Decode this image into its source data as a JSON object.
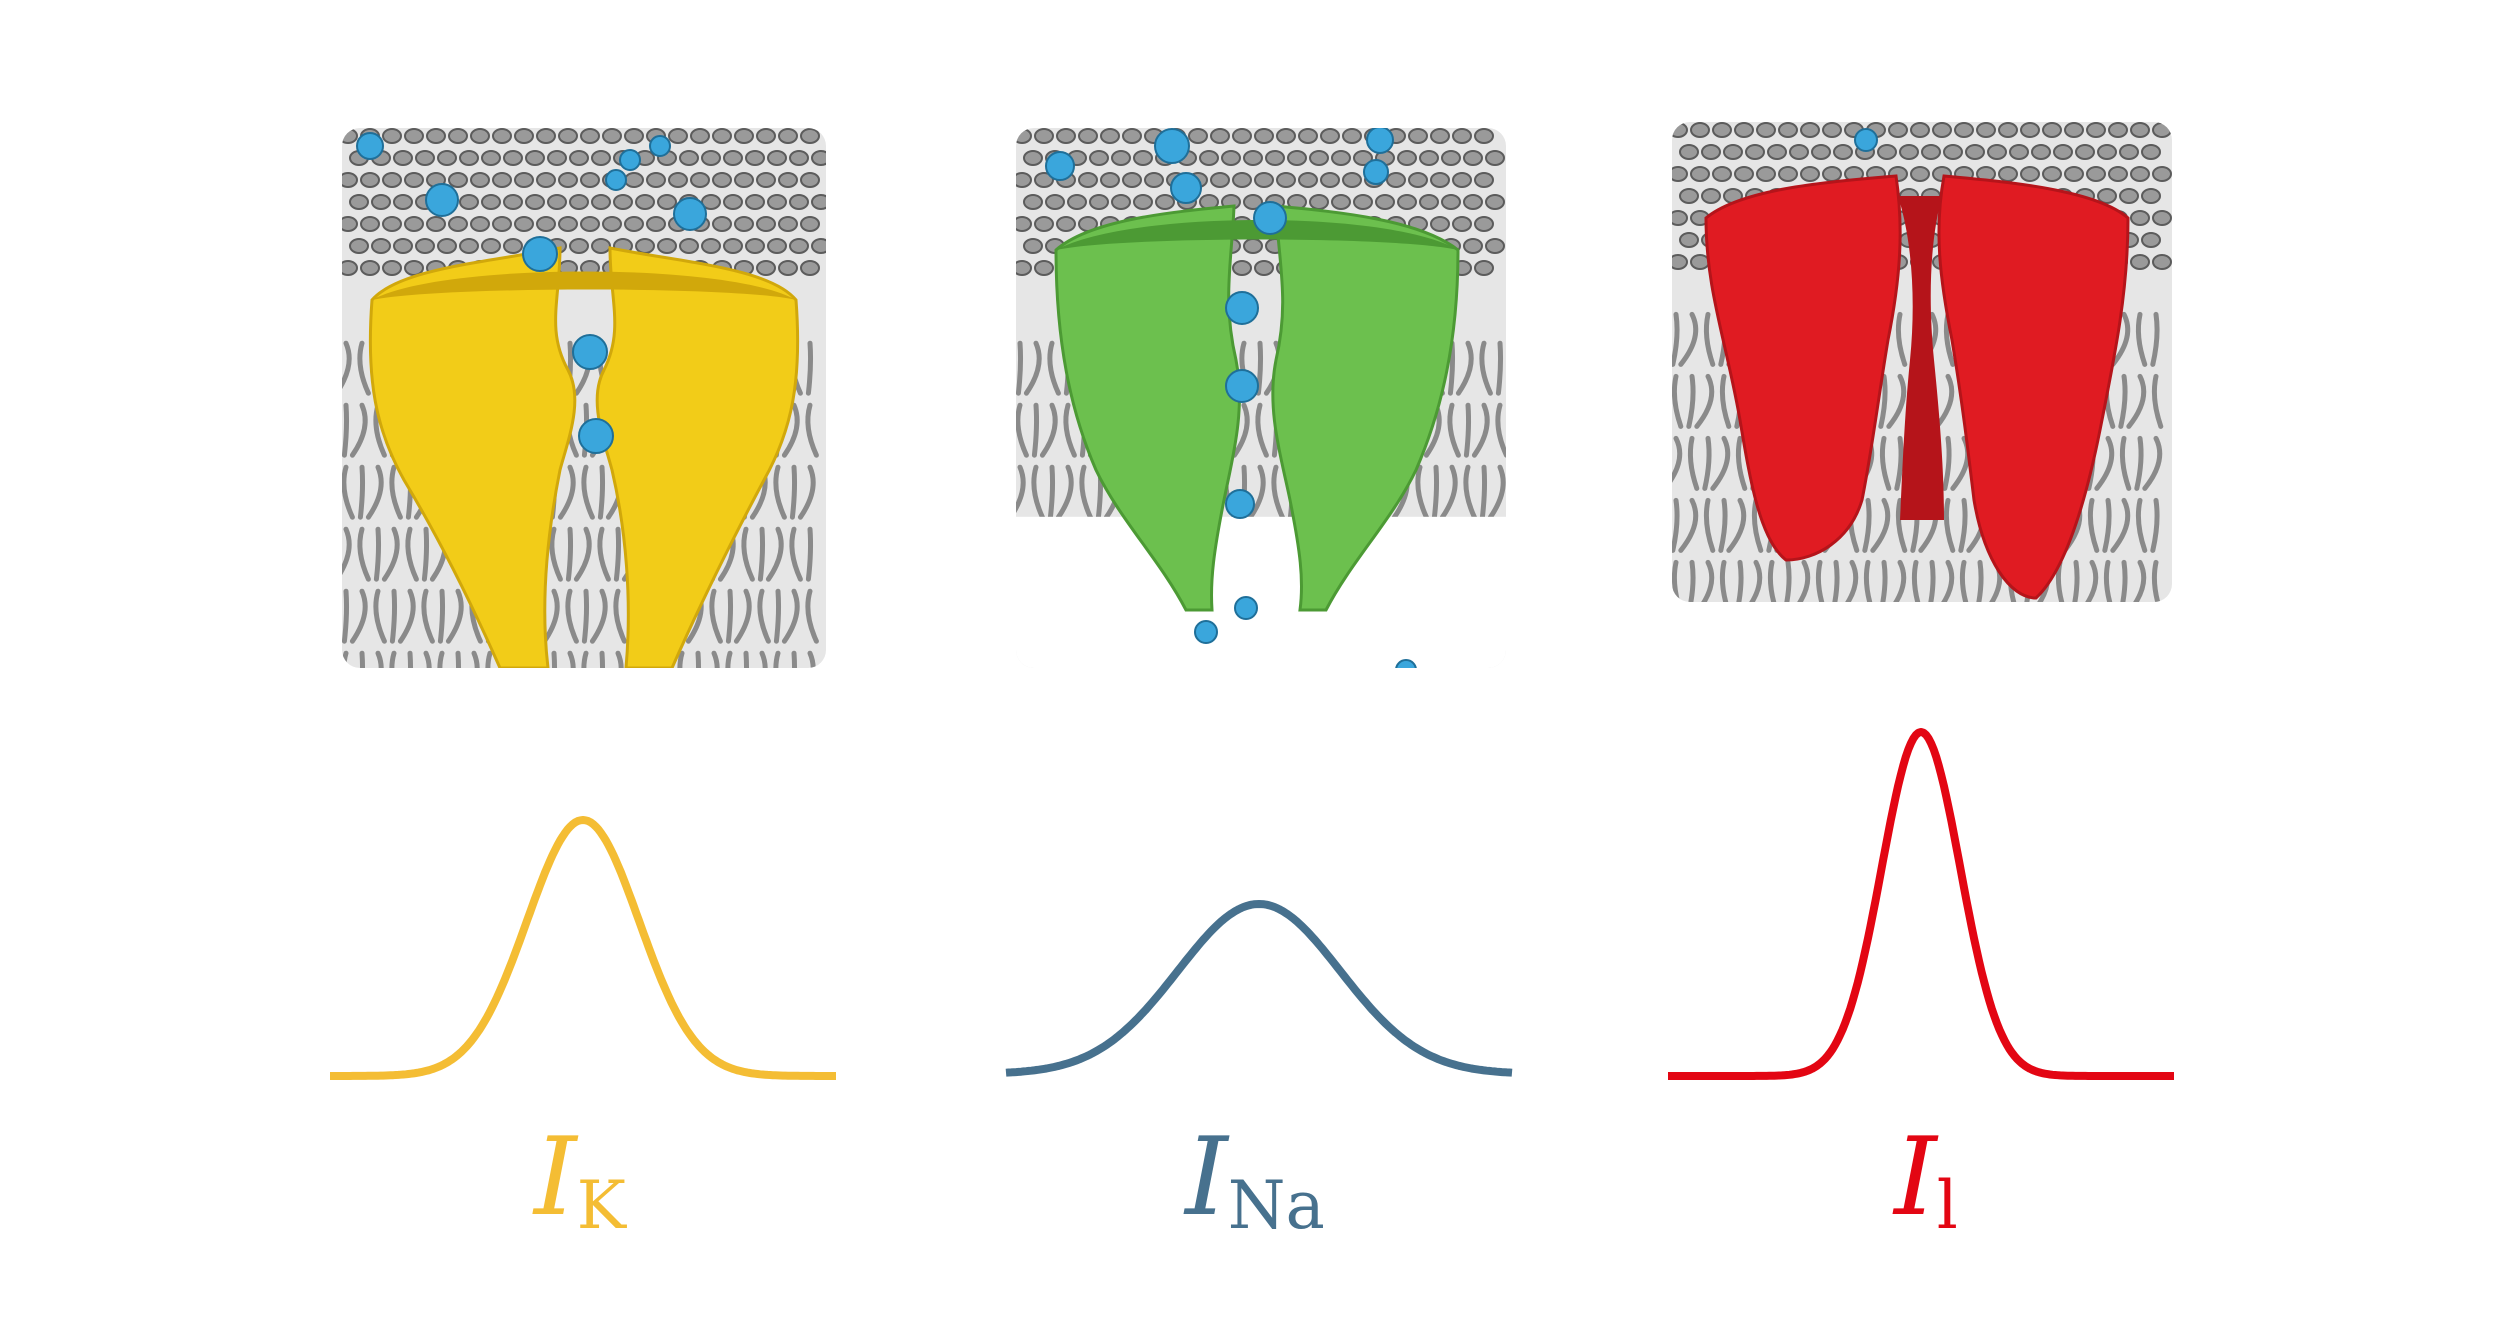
{
  "panels": [
    {
      "id": "potassium",
      "channel_color": "#f2cc18",
      "channel_shade": "#d1a80b",
      "curve_color": "#f4bd34",
      "label_main": "I",
      "label_sub": "K",
      "gaussian_peak": 1.0,
      "gaussian_width": 1.0
    },
    {
      "id": "sodium",
      "channel_color": "#6cc04e",
      "channel_shade": "#4c9a34",
      "curve_color": "#47718e",
      "label_main": "I",
      "label_sub": "Na",
      "gaussian_peak": 0.66,
      "gaussian_width": 1.45
    },
    {
      "id": "leak",
      "channel_color": "#e01b22",
      "channel_shade": "#b5141a",
      "curve_color": "#e30613",
      "label_main": "I",
      "label_sub": "l",
      "gaussian_peak": 1.34,
      "gaussian_width": 0.7
    }
  ],
  "ion_color": "#3aa6dc",
  "membrane_color": "#9a9a9a"
}
